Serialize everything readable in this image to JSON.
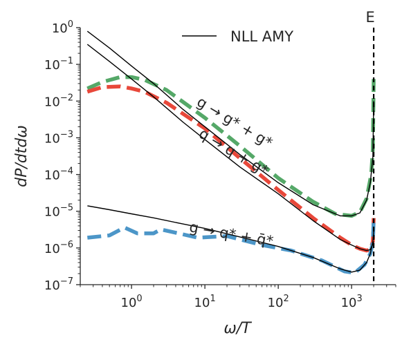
{
  "chart_data": {
    "type": "line",
    "xlabel": "ω/T",
    "ylabel": "dP/dtdω",
    "x_scale": "log",
    "y_scale": "log",
    "xlim": [
      0.2,
      4000
    ],
    "ylim": [
      1e-07,
      1
    ],
    "grid": false,
    "legend": {
      "position": "top-center",
      "entries": [
        "NLL AMY"
      ]
    },
    "x_ticks": [
      {
        "value": 1,
        "base": "10",
        "exp": "0"
      },
      {
        "value": 10,
        "base": "10",
        "exp": "1"
      },
      {
        "value": 100,
        "base": "10",
        "exp": "2"
      },
      {
        "value": 1000,
        "base": "10",
        "exp": "3"
      }
    ],
    "y_ticks": [
      {
        "value": 1,
        "base": "10",
        "exp": "0"
      },
      {
        "value": 0.1,
        "base": "10",
        "exp": "−1"
      },
      {
        "value": 0.01,
        "base": "10",
        "exp": "−2"
      },
      {
        "value": 0.001,
        "base": "10",
        "exp": "−3"
      },
      {
        "value": 0.0001,
        "base": "10",
        "exp": "−4"
      },
      {
        "value": 1e-05,
        "base": "10",
        "exp": "−5"
      },
      {
        "value": 1e-06,
        "base": "10",
        "exp": "−6"
      },
      {
        "value": 1e-07,
        "base": "10",
        "exp": "−7"
      }
    ],
    "vline": {
      "x": 2000,
      "label": "E",
      "style": "dashed",
      "color": "#000000"
    },
    "series": [
      {
        "name": "NLL AMY",
        "style": "solid",
        "color": "#000000",
        "group": "ggg",
        "points": [
          [
            0.25,
            0.8
          ],
          [
            0.5,
            0.28
          ],
          [
            1,
            0.09
          ],
          [
            2,
            0.03
          ],
          [
            5,
            0.006
          ],
          [
            10,
            0.002
          ],
          [
            30,
            0.00035
          ],
          [
            100,
            6e-05
          ],
          [
            300,
            1.5e-05
          ],
          [
            700,
            7.5e-06
          ],
          [
            1000,
            7.5e-06
          ],
          [
            1300,
            9e-06
          ],
          [
            1600,
            2e-05
          ],
          [
            1800,
            6e-05
          ],
          [
            1950,
            0.0003
          ],
          [
            2000,
            0.01
          ]
        ]
      },
      {
        "name": "NLL AMY",
        "style": "solid",
        "color": "#000000",
        "group": "qqg",
        "points": [
          [
            0.25,
            0.35
          ],
          [
            0.5,
            0.12
          ],
          [
            1,
            0.04
          ],
          [
            2,
            0.013
          ],
          [
            5,
            0.0027
          ],
          [
            10,
            0.0009
          ],
          [
            30,
            0.00016
          ],
          [
            100,
            3e-05
          ],
          [
            300,
            5.5e-06
          ],
          [
            700,
            1.7e-06
          ],
          [
            1000,
            1.2e-06
          ],
          [
            1300,
            9.5e-07
          ],
          [
            1600,
            8.5e-07
          ],
          [
            1800,
            9e-07
          ],
          [
            1950,
            1.3e-06
          ],
          [
            2000,
            1.5e-06
          ]
        ]
      },
      {
        "name": "NLL AMY",
        "style": "solid",
        "color": "#000000",
        "group": "gqq",
        "points": [
          [
            0.25,
            1.4e-05
          ],
          [
            0.5,
            1.1e-05
          ],
          [
            1,
            8.5e-06
          ],
          [
            2,
            6.6e-06
          ],
          [
            5,
            4.5e-06
          ],
          [
            10,
            3.4e-06
          ],
          [
            30,
            2e-06
          ],
          [
            100,
            1.1e-06
          ],
          [
            300,
            5.5e-07
          ],
          [
            700,
            2.7e-07
          ],
          [
            1000,
            2.2e-07
          ],
          [
            1300,
            2.5e-07
          ],
          [
            1600,
            4e-07
          ],
          [
            1800,
            7e-07
          ],
          [
            1950,
            1.5e-06
          ],
          [
            2000,
            3e-06
          ]
        ]
      },
      {
        "group": "ggg-dash",
        "style": "dashed",
        "color": "#55a868",
        "points": [
          [
            0.25,
            0.022
          ],
          [
            0.4,
            0.033
          ],
          [
            0.7,
            0.045
          ],
          [
            1,
            0.045
          ],
          [
            1.5,
            0.038
          ],
          [
            3,
            0.02
          ],
          [
            10,
            0.0035
          ],
          [
            30,
            0.0006
          ],
          [
            100,
            8e-05
          ],
          [
            300,
            1.8e-05
          ],
          [
            600,
            8.5e-06
          ],
          [
            1000,
            7.5e-06
          ],
          [
            1300,
            9.5e-06
          ],
          [
            1600,
            2.2e-05
          ],
          [
            1850,
            0.0001
          ],
          [
            1950,
            0.0005
          ],
          [
            2000,
            0.04
          ]
        ]
      },
      {
        "group": "qqg-dash",
        "style": "dashed",
        "color": "#e8483a",
        "points": [
          [
            0.25,
            0.018
          ],
          [
            0.4,
            0.024
          ],
          [
            0.7,
            0.025
          ],
          [
            1,
            0.022
          ],
          [
            1.5,
            0.018
          ],
          [
            3,
            0.009
          ],
          [
            10,
            0.0018
          ],
          [
            30,
            0.00028
          ],
          [
            100,
            3.8e-05
          ],
          [
            300,
            6.5e-06
          ],
          [
            700,
            1.9e-06
          ],
          [
            1000,
            1.2e-06
          ],
          [
            1300,
            9.5e-07
          ],
          [
            1600,
            8.5e-07
          ],
          [
            1800,
            9e-07
          ],
          [
            1950,
            1.5e-06
          ],
          [
            2000,
            6.5e-06
          ]
        ]
      },
      {
        "group": "gqq-dash",
        "style": "dashed",
        "color": "#4c96c8",
        "points": [
          [
            0.25,
            1.9e-06
          ],
          [
            0.5,
            2.2e-06
          ],
          [
            0.8,
            3.6e-06
          ],
          [
            1.2,
            2.5e-06
          ],
          [
            2,
            2.5e-06
          ],
          [
            2.5,
            3.2e-06
          ],
          [
            4,
            2.6e-06
          ],
          [
            8,
            1.9e-06
          ],
          [
            20,
            2.1e-06
          ],
          [
            60,
            1.2e-06
          ],
          [
            150,
            8.5e-07
          ],
          [
            400,
            4.5e-07
          ],
          [
            800,
            2.3e-07
          ],
          [
            1100,
            2.1e-07
          ],
          [
            1500,
            3.5e-07
          ],
          [
            1800,
            7e-07
          ],
          [
            1950,
            1.4e-06
          ],
          [
            2000,
            6e-06
          ]
        ]
      }
    ],
    "annotations": [
      {
        "text": "g → g* + g*",
        "x": 7.5,
        "y": 0.008,
        "angle": 31
      },
      {
        "text": "q → q + g*",
        "x": 8,
        "y": 0.0011,
        "angle": 31
      },
      {
        "text": "g → q* + q̄*",
        "x": 6,
        "y": 2.8e-06,
        "angle": 10
      }
    ]
  }
}
